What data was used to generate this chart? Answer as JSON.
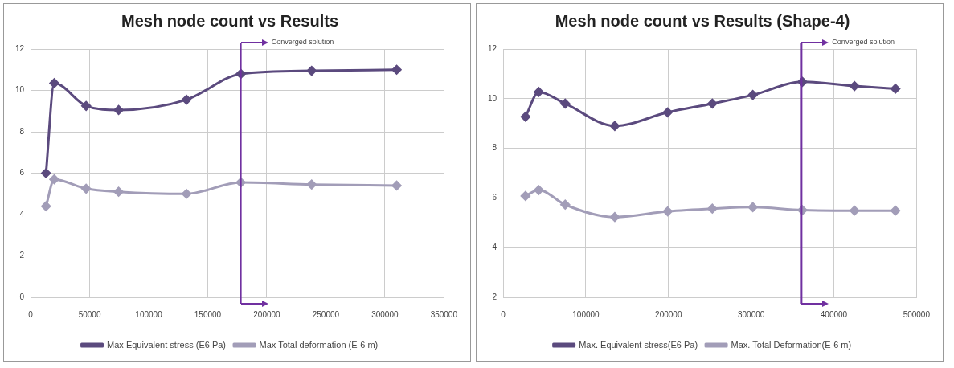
{
  "chart_data": [
    {
      "type": "line",
      "title": "Mesh node count vs Results",
      "xlim": [
        0,
        350000
      ],
      "xticks": [
        0,
        50000,
        100000,
        150000,
        200000,
        250000,
        300000,
        350000
      ],
      "ylim": [
        0,
        12
      ],
      "yticks": [
        0,
        2,
        4,
        6,
        8,
        10,
        12
      ],
      "grid": true,
      "legend": "bottom",
      "marker": "diamond",
      "line_style": "solid",
      "series": [
        {
          "name": "Max Equivalent stress (E6 Pa)",
          "color": "#5b4a7e",
          "x": [
            13000,
            20000,
            47000,
            74500,
            132000,
            178000,
            238000,
            310000
          ],
          "values": [
            6.0,
            10.35,
            9.25,
            9.05,
            9.55,
            10.8,
            10.95,
            11.0
          ]
        },
        {
          "name": "Max Total deformation (E-6 m)",
          "color": "#a29db8",
          "x": [
            13000,
            20000,
            47000,
            74500,
            132000,
            178000,
            238000,
            310000
          ],
          "values": [
            4.4,
            5.7,
            5.25,
            5.1,
            5.0,
            5.55,
            5.45,
            5.4
          ]
        }
      ],
      "ref_lines": [
        {
          "axis": "x",
          "value": 178000,
          "label": "Converged solution",
          "color": "#7030a0"
        }
      ]
    },
    {
      "type": "line",
      "title": "Mesh node count vs Results (Shape-4)",
      "xlim": [
        0,
        500000
      ],
      "xticks": [
        0,
        100000,
        200000,
        300000,
        400000,
        500000
      ],
      "ylim": [
        2,
        12
      ],
      "yticks": [
        2,
        4,
        6,
        8,
        10,
        12
      ],
      "grid": true,
      "legend": "bottom",
      "marker": "diamond",
      "line_style": "solid",
      "series": [
        {
          "name": "Max. Equivalent stress(E6 Pa)",
          "color": "#5b4a7e",
          "x": [
            27000,
            43000,
            75000,
            135000,
            199000,
            253000,
            302000,
            362000,
            425000,
            474500
          ],
          "values": [
            9.27,
            10.27,
            9.8,
            8.9,
            9.45,
            9.8,
            10.15,
            10.68,
            10.51,
            10.4
          ]
        },
        {
          "name": "Max. Total Deformation(E-6 m)",
          "color": "#a29db8",
          "x": [
            27000,
            43000,
            75000,
            135000,
            199000,
            253000,
            302000,
            362000,
            425000,
            474500
          ],
          "values": [
            6.08,
            6.32,
            5.73,
            5.23,
            5.46,
            5.57,
            5.63,
            5.51,
            5.49,
            5.49
          ]
        }
      ],
      "ref_lines": [
        {
          "axis": "x",
          "value": 361000,
          "label": "Converged solution",
          "color": "#7030a0"
        }
      ]
    }
  ]
}
